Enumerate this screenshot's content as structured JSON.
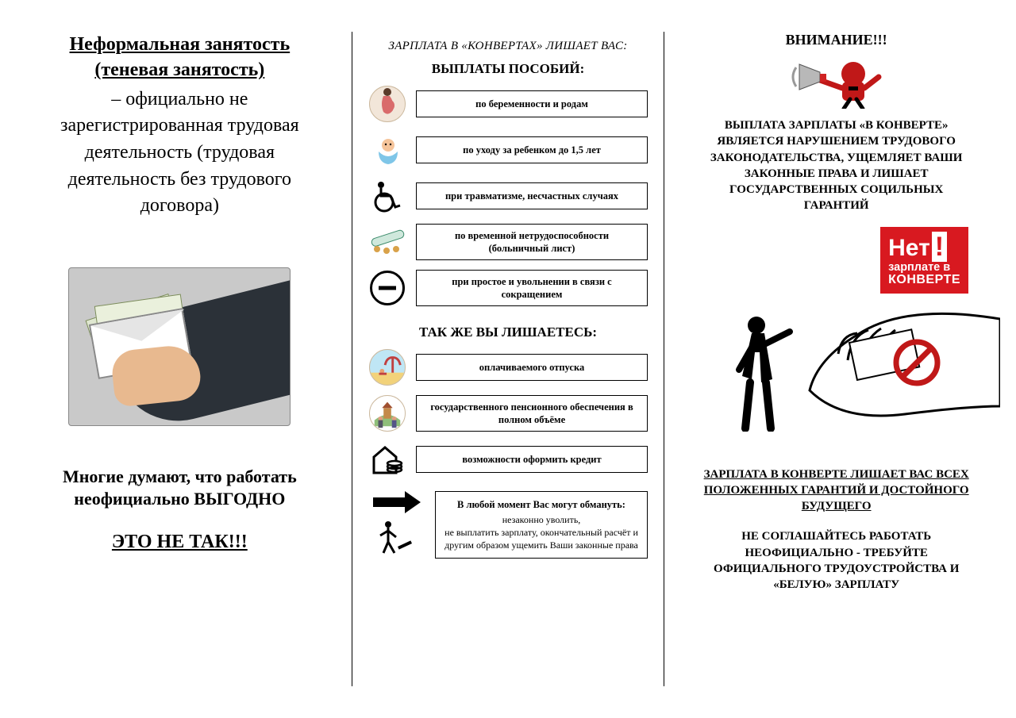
{
  "typography": {
    "base_family": "Times New Roman",
    "heading_fontsize_pt": 18,
    "body_fontsize_pt": 12,
    "colors": {
      "text": "#000000",
      "background": "#ffffff",
      "accent_red": "#d81920",
      "grey": "#c9c9c9"
    }
  },
  "left": {
    "definition_title": "Неформальная занятость (теневая занятость)",
    "definition_body": " – официально не  зарегистрированная трудовая деятельность (трудовая деятельность без трудового договора)",
    "thought_line1": "Многие думают, что работать неофициально ВЫГОДНО",
    "thought_line2": "ЭТО НЕ ТАК!!!"
  },
  "middle": {
    "header1": "ЗАРПЛАТА В «КОНВЕРТАХ» ЛИШАЕТ ВАС:",
    "header2": "ВЫПЛАТЫ ПОСОБИЙ:",
    "items1": [
      {
        "icon": "pregnant-icon",
        "label": "по беременности и родам"
      },
      {
        "icon": "baby-icon",
        "label": "по уходу за ребенком до 1,5 лет"
      },
      {
        "icon": "wheelchair-icon",
        "label": "при травматизме, несчастных случаях"
      },
      {
        "icon": "pills-icon",
        "label": "по временной нетрудоспособности (больничный лист)"
      },
      {
        "icon": "no-entry-icon",
        "label": "при простое и увольнении в связи с сокращением"
      }
    ],
    "header3": "ТАК ЖЕ ВЫ ЛИШАЕТЕСЬ:",
    "items2": [
      {
        "icon": "beach-icon",
        "label": "оплачиваемого отпуска"
      },
      {
        "icon": "elderly-icon",
        "label": "государственного пенсионного обеспечения в полном объёме"
      },
      {
        "icon": "credit-icon",
        "label": "возможности оформить кредит"
      }
    ],
    "warn_title": "В любой момент Вас могут обмануть:",
    "warn_body": "незаконно уволить,\nне выплатить зарплату, окончательный расчёт и другим образом ущемить Ваши законные права"
  },
  "right": {
    "attention": "ВНИМАНИЕ!!!",
    "caps_block": "ВЫПЛАТА ЗАРПЛАТЫ «В КОНВЕРТЕ» ЯВЛЯЕТСЯ НАРУШЕНИЕМ ТРУДОВОГО ЗАКОНОДАТЕЛЬСТВА, УЩЕМЛЯЕТ ВАШИ ЗАКОННЫЕ ПРАВА И ЛИШАЕТ ГОСУДАРСТВЕННЫХ СОЦИЛЬНЫХ ГАРАНТИЙ",
    "stamp_line_top": "Нет",
    "stamp_line_mid": "зарплате в",
    "stamp_line_bot": "КОНВЕРТЕ",
    "sub1": "ЗАРПЛАТА В КОНВЕРТЕ ЛИШАЕТ ВАС ВСЕХ ПОЛОЖЕННЫХ ГАРАНТИЙ И ДОСТОЙНОГО БУДУЩЕГО",
    "sub2": "НЕ СОГЛАШАЙТЕСЬ РАБОТАТЬ НЕОФИЦИАЛЬНО - ТРЕБУЙТЕ ОФИЦИАЛЬНОГО ТРУДОУСТРОЙСТВА И «БЕЛУЮ» ЗАРПЛАТУ"
  }
}
